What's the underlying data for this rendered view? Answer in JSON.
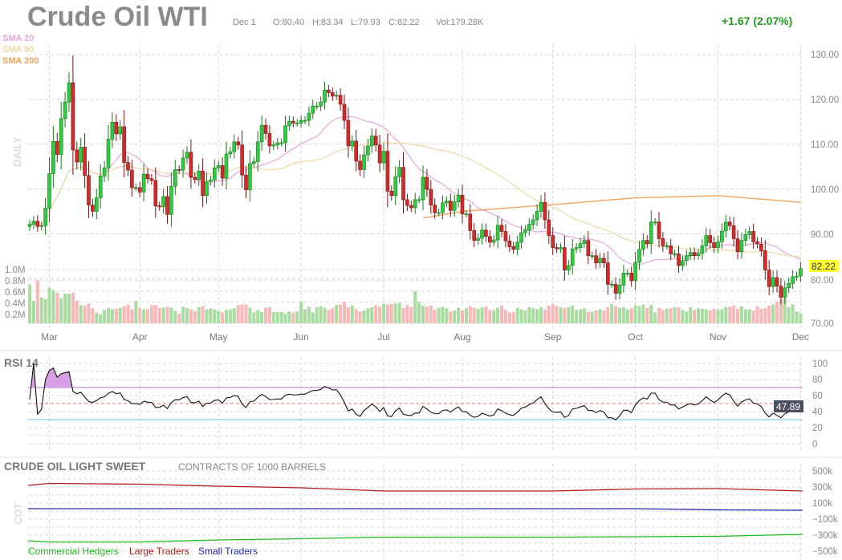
{
  "header": {
    "title": "Crude Oil WTI",
    "date": "Dec 1",
    "open": "O:80.40",
    "high": "H:83.34",
    "low": "L:79.93",
    "close": "C:82.22",
    "volume": "Vol:179.28K",
    "change": "+1.67 (2.07%)"
  },
  "colors": {
    "up": "#2ecc40",
    "up_border": "#1b7a1b",
    "down": "#d42a2a",
    "down_border": "#7a1515",
    "vol_up": "#a8dca0",
    "vol_down": "#f8b8b8",
    "sma20": "#e8a6dc",
    "sma50": "#f0d8a4",
    "sma200": "#f3a25e",
    "change": "#1f9a1f",
    "rsi_fill": "#d8a0e4"
  },
  "price_panel": {
    "side_label": "DAILY",
    "legend": [
      "SMA 20",
      "SMA 50",
      "SMA 200"
    ],
    "price_ticks": [
      "130.00",
      "120.00",
      "110.00",
      "100.00",
      "90.00",
      "80.00",
      "70.00"
    ],
    "volume_ticks": [
      "1.0M",
      "0.8M",
      "0.6M",
      "0.4M",
      "0.2M"
    ],
    "last_price": "82.22"
  },
  "chart_data": [
    {
      "type": "candlestick",
      "title": "Crude Oil WTI",
      "ylim": [
        70,
        130
      ],
      "grid": true,
      "x_ticks": [
        "Mar",
        "Apr",
        "May",
        "Jun",
        "Jul",
        "Aug",
        "Sep",
        "Oct",
        "Nov",
        "Dec"
      ],
      "months": [
        {
          "label": "",
          "close": [
            92.1,
            92.8,
            91.6,
            91.8,
            95.7
          ],
          "volume_m": [
            0.72,
            0.42,
            0.8,
            0.48,
            0.45
          ]
        },
        {
          "label": "Mar",
          "close": [
            103.4,
            110.6,
            107.7,
            115.7,
            119.4,
            123.7,
            108.7,
            106.0,
            109.3,
            103.0,
            96.4,
            95.0,
            98.0,
            102.9,
            104.7,
            111.1,
            114.9,
            112.3,
            113.9,
            105.9,
            104.2,
            100.3,
            100.3
          ],
          "volume_m": [
            0.66,
            0.62,
            0.57,
            0.47,
            0.55,
            0.55,
            0.57,
            0.42,
            0.34,
            0.33,
            0.37,
            0.28,
            0.19,
            0.17,
            0.25,
            0.29,
            0.26,
            0.27,
            0.29,
            0.32,
            0.35,
            0.26,
            0.42
          ]
        },
        {
          "label": "Apr",
          "close": [
            99.3,
            103.3,
            102.3,
            101.9,
            96.2,
            96.0,
            98.3,
            94.3,
            100.6,
            104.3,
            104.2,
            106.9,
            108.2,
            102.6,
            102.1,
            104.0,
            98.5,
            101.7,
            102.0,
            104.7
          ],
          "volume_m": [
            0.29,
            0.26,
            0.26,
            0.34,
            0.34,
            0.29,
            0.29,
            0.31,
            0.29,
            0.23,
            0.18,
            0.31,
            0.28,
            0.26,
            0.23,
            0.3,
            0.32,
            0.26,
            0.28,
            0.26
          ]
        },
        {
          "label": "May",
          "close": [
            105.2,
            102.4,
            107.8,
            108.3,
            110.5,
            109.8,
            103.1,
            99.8,
            105.7,
            106.1,
            110.5,
            114.2,
            112.4,
            109.6,
            109.8,
            110.3,
            110.3,
            114.1,
            115.1,
            114.7,
            114.7
          ],
          "volume_m": [
            0.23,
            0.2,
            0.25,
            0.26,
            0.28,
            0.34,
            0.35,
            0.35,
            0.29,
            0.2,
            0.25,
            0.21,
            0.29,
            0.3,
            0.21,
            0.21,
            0.21,
            0.18,
            0.22,
            0.19,
            0.22
          ]
        },
        {
          "label": "Jun",
          "close": [
            115.3,
            115.3,
            116.9,
            118.5,
            118.5,
            119.4,
            122.1,
            121.5,
            120.7,
            120.9,
            118.9,
            115.3,
            109.6,
            110.7,
            106.2,
            104.3,
            107.6,
            109.6,
            111.8,
            109.8,
            105.8
          ],
          "volume_m": [
            0.41,
            0.26,
            0.31,
            0.2,
            0.3,
            0.32,
            0.29,
            0.25,
            0.28,
            0.34,
            0.35,
            0.4,
            0.3,
            0.33,
            0.26,
            0.22,
            0.24,
            0.28,
            0.3,
            0.34,
            0.31
          ]
        },
        {
          "label": "Jul",
          "close": [
            108.4,
            99.5,
            98.5,
            102.7,
            104.8,
            97.6,
            96.3,
            95.8,
            97.6,
            97.6,
            102.6,
            99.9,
            96.4,
            94.7,
            94.7,
            96.9,
            97.3,
            95.2,
            97.1,
            98.6
          ],
          "volume_m": [
            0.36,
            0.35,
            0.36,
            0.37,
            0.38,
            0.29,
            0.34,
            0.3,
            0.6,
            0.4,
            0.33,
            0.31,
            0.33,
            0.25,
            0.29,
            0.31,
            0.28,
            0.22,
            0.24,
            0.29
          ]
        },
        {
          "label": "Aug",
          "close": [
            94.4,
            94.4,
            90.7,
            88.5,
            89.0,
            90.8,
            89.4,
            88.1,
            88.6,
            91.9,
            90.5,
            88.4,
            87.1,
            86.5,
            88.1,
            90.2,
            90.8,
            92.1,
            93.1,
            95.0,
            97.0,
            93.1,
            89.6
          ],
          "volume_m": [
            0.24,
            0.28,
            0.32,
            0.29,
            0.27,
            0.3,
            0.31,
            0.25,
            0.25,
            0.29,
            0.33,
            0.25,
            0.2,
            0.21,
            0.29,
            0.26,
            0.24,
            0.3,
            0.28,
            0.26,
            0.3,
            0.26,
            0.33
          ]
        },
        {
          "label": "Sep",
          "close": [
            86.9,
            86.6,
            86.9,
            81.9,
            82.9,
            86.6,
            86.9,
            87.8,
            88.5,
            85.1,
            85.1,
            83.5,
            84.5,
            83.5,
            78.7,
            78.7,
            76.7,
            78.5,
            81.2,
            81.2,
            79.5
          ],
          "volume_m": [
            0.36,
            0.32,
            0.3,
            0.28,
            0.3,
            0.33,
            0.25,
            0.26,
            0.28,
            0.21,
            0.22,
            0.24,
            0.26,
            0.24,
            0.3,
            0.36,
            0.32,
            0.28,
            0.3,
            0.26,
            0.28
          ]
        },
        {
          "label": "Oct",
          "close": [
            83.6,
            86.5,
            88.5,
            87.8,
            92.6,
            92.6,
            88.9,
            87.3,
            87.3,
            85.5,
            85.5,
            82.9,
            84.0,
            85.1,
            85.8,
            85.1,
            85.6,
            87.3,
            89.6,
            88.0,
            86.9
          ],
          "volume_m": [
            0.33,
            0.32,
            0.35,
            0.29,
            0.34,
            0.2,
            0.29,
            0.25,
            0.27,
            0.28,
            0.3,
            0.3,
            0.25,
            0.22,
            0.3,
            0.25,
            0.28,
            0.27,
            0.26,
            0.24,
            0.27
          ]
        },
        {
          "label": "Nov",
          "close": [
            88.2,
            90.6,
            92.6,
            91.8,
            88.9,
            86.0,
            88.5,
            89.8,
            90.5,
            88.2,
            87.7,
            86.2,
            81.9,
            78.2,
            80.2,
            78.3,
            75.8,
            77.9,
            78.9,
            80.4,
            80.55
          ],
          "volume_m": [
            0.25,
            0.26,
            0.3,
            0.31,
            0.33,
            0.27,
            0.32,
            0.26,
            0.26,
            0.24,
            0.32,
            0.27,
            0.28,
            0.33,
            0.35,
            0.4,
            0.45,
            0.47,
            0.3,
            0.35,
            0.22
          ]
        },
        {
          "label": "Dec",
          "close": [
            82.22
          ],
          "volume_m": [
            0.18
          ]
        }
      ],
      "sma200_by_month": {
        "Jul": 93.5,
        "Aug": 95.0,
        "Sep": 96.5,
        "Oct": 98.0,
        "Nov": 98.5,
        "Dec": 97.0
      }
    },
    {
      "type": "line",
      "title": "RSI 14",
      "ylim": [
        0,
        100
      ],
      "y_ticks": [
        "100",
        "80",
        "60",
        "40",
        "20",
        "0"
      ],
      "overbought": 70,
      "oversold": 30,
      "midline": 50,
      "last_value": "47.89"
    },
    {
      "type": "line",
      "title": "CRUDE OIL LIGHT SWEET",
      "subtitle": "CONTRACTS OF 1000 BARRELS",
      "side_label": "COT",
      "ylim": [
        -500000,
        500000
      ],
      "y_ticks": [
        "500k",
        "300k",
        "100k",
        "−100k",
        "−300k",
        "−500k"
      ],
      "x_points": [
        "",
        "Mar",
        "Apr",
        "May",
        "Jun",
        "Jul",
        "Aug",
        "Sep",
        "Oct",
        "Nov",
        "Dec"
      ],
      "series": [
        {
          "name": "Commercial Hedgers",
          "color": "#22bb22",
          "values": [
            -370000,
            -385000,
            -385000,
            -360000,
            -345000,
            -325000,
            -325000,
            -325000,
            -320000,
            -315000,
            -290000
          ]
        },
        {
          "name": "Large Traders",
          "color": "#b01c1c",
          "values": [
            320000,
            345000,
            335000,
            310000,
            290000,
            250000,
            250000,
            250000,
            275000,
            280000,
            250000
          ]
        },
        {
          "name": "Small Traders",
          "color": "#2a2aa8",
          "values": [
            30000,
            30000,
            30000,
            30000,
            30000,
            30000,
            30000,
            30000,
            30000,
            15000,
            10000
          ]
        }
      ]
    }
  ]
}
